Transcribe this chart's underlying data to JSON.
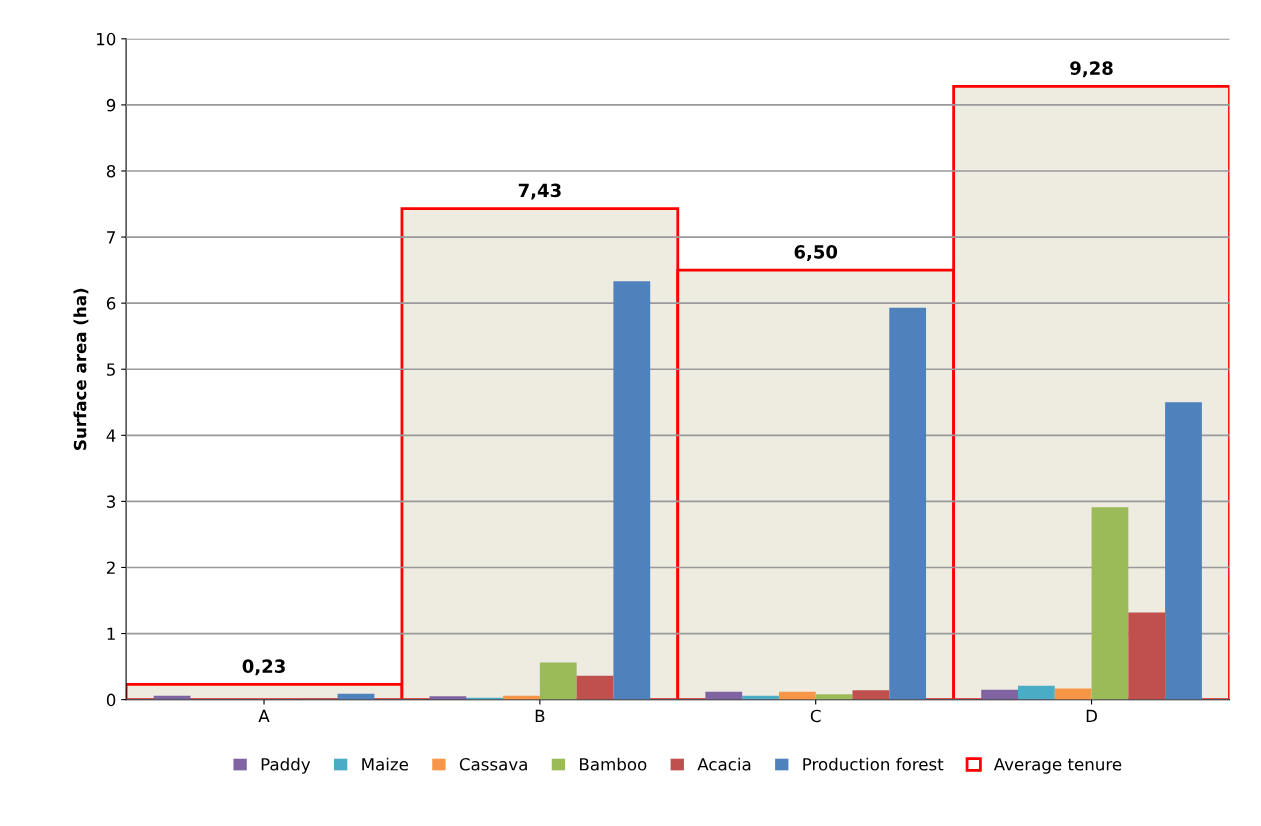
{
  "chart_data": {
    "type": "bar",
    "ylabel": "Surface area (ha)",
    "categories": [
      "A",
      "B",
      "C",
      "D"
    ],
    "ylim": [
      0,
      10
    ],
    "yticks": [
      0,
      1,
      2,
      3,
      4,
      5,
      6,
      7,
      8,
      9,
      10
    ],
    "grid": "y",
    "legend": "bottom",
    "series": [
      {
        "name": "Average tenure",
        "color": "#ff0000",
        "values": [
          0.23,
          7.43,
          6.5,
          9.28
        ],
        "value_labels": [
          "0,23",
          "7,43",
          "6,50",
          "9,28"
        ]
      },
      {
        "name": "Paddy",
        "color": "#8064a2",
        "values": [
          0.06,
          0.05,
          0.12,
          0.15
        ]
      },
      {
        "name": "Maize",
        "color": "#4bacc6",
        "values": [
          0,
          0.03,
          0.06,
          0.21
        ]
      },
      {
        "name": "Cassava",
        "color": "#f79646",
        "values": [
          0,
          0.06,
          0.12,
          0.17
        ]
      },
      {
        "name": "Bamboo",
        "color": "#9bbb59",
        "values": [
          0,
          0.56,
          0.08,
          2.91
        ]
      },
      {
        "name": "Acacia",
        "color": "#c0504d",
        "values": [
          0.02,
          0.36,
          0.14,
          1.32
        ]
      },
      {
        "name": "Production forest",
        "color": "#4f81bd",
        "values": [
          0.09,
          6.33,
          5.93,
          4.5
        ]
      }
    ]
  }
}
